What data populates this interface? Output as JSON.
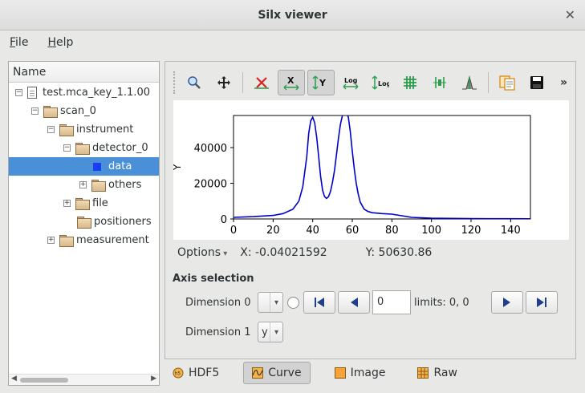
{
  "window": {
    "title": "Silx viewer",
    "close_glyph": "✕"
  },
  "menu": [
    "File",
    "Help"
  ],
  "tree": {
    "header": "Name",
    "items": [
      {
        "label": "test.mca_key_1.1.00",
        "icon": "file-icon",
        "expander": "−",
        "indent": 0
      },
      {
        "label": "scan_0",
        "icon": "folder-icon",
        "expander": "−",
        "indent": 1
      },
      {
        "label": "instrument",
        "icon": "folder-icon",
        "expander": "−",
        "indent": 2
      },
      {
        "label": "detector_0",
        "icon": "folder-icon",
        "expander": "−",
        "indent": 3
      },
      {
        "label": "data",
        "icon": "dataset-icon",
        "expander": "",
        "indent": 4,
        "selected": true
      },
      {
        "label": "others",
        "icon": "folder-icon",
        "expander": "+",
        "indent": 4
      },
      {
        "label": "file",
        "icon": "folder-icon",
        "expander": "+",
        "indent": 3
      },
      {
        "label": "positioners",
        "icon": "folder-icon",
        "expander": "",
        "indent": 3
      },
      {
        "label": "measurement",
        "icon": "folder-icon",
        "expander": "+",
        "indent": 2
      }
    ]
  },
  "toolbar": {
    "buttons": [
      {
        "name": "zoom-mode-icon",
        "active": true
      },
      {
        "name": "pan-mode-icon",
        "active": false
      },
      {
        "name": "reset-zoom-icon",
        "active": false
      },
      {
        "name": "x-autoscale-icon",
        "active": true
      },
      {
        "name": "y-autoscale-icon",
        "active": true
      },
      {
        "name": "x-log-icon",
        "active": false
      },
      {
        "name": "y-log-icon",
        "active": false
      },
      {
        "name": "grid-icon",
        "active": false
      },
      {
        "name": "curve-style-icon",
        "active": false
      },
      {
        "name": "fit-icon",
        "active": false
      },
      {
        "name": "copy-icon",
        "active": false
      },
      {
        "name": "save-icon",
        "active": false
      }
    ],
    "more_glyph": "»"
  },
  "chart_data": {
    "type": "line",
    "ylabel": "Y",
    "xlim": [
      0,
      150
    ],
    "ylim": [
      0,
      58000
    ],
    "xticks": [
      0,
      20,
      40,
      60,
      80,
      100,
      120,
      140
    ],
    "yticks": [
      0,
      20000,
      40000
    ],
    "color": "#0000cc",
    "series": [
      {
        "x": [
          0,
          10,
          20,
          25,
          30,
          33,
          35,
          37,
          38,
          39,
          40,
          41,
          42,
          43,
          44,
          45,
          46,
          47,
          48,
          49,
          50,
          51,
          52,
          53,
          54,
          55,
          56,
          57,
          58,
          59,
          60,
          61,
          62,
          63,
          64,
          66,
          68,
          70,
          75,
          80,
          85,
          90,
          100,
          110,
          120,
          130,
          140,
          150
        ],
        "y": [
          900,
          1300,
          2000,
          3000,
          5500,
          10000,
          18000,
          35000,
          48000,
          55000,
          57000,
          54000,
          46000,
          35000,
          24000,
          16000,
          12500,
          11500,
          12500,
          15500,
          20500,
          27000,
          36000,
          45000,
          53000,
          58000,
          60000,
          60000,
          57000,
          49000,
          38000,
          28000,
          20000,
          14000,
          9500,
          5500,
          4200,
          3500,
          3000,
          2700,
          1800,
          900,
          400,
          300,
          200,
          150,
          120,
          100
        ]
      }
    ]
  },
  "status": {
    "options_label": "Options",
    "x_readout": "X: -0.04021592",
    "y_readout": "Y: 50630.86"
  },
  "axis_selection": {
    "title": "Axis selection",
    "dim0": {
      "label": "Dimension 0",
      "combo_value": "",
      "spin_value": "0",
      "limits": "limits: 0, 0"
    },
    "dim1": {
      "label": "Dimension 1",
      "combo_value": "y"
    }
  },
  "tabs": [
    {
      "label": "HDF5",
      "icon": "hdf5-icon",
      "active": false
    },
    {
      "label": "Curve",
      "icon": "curve-icon",
      "active": true
    },
    {
      "label": "Image",
      "icon": "image-icon",
      "active": false
    },
    {
      "label": "Raw",
      "icon": "raw-table-icon",
      "active": false
    }
  ]
}
